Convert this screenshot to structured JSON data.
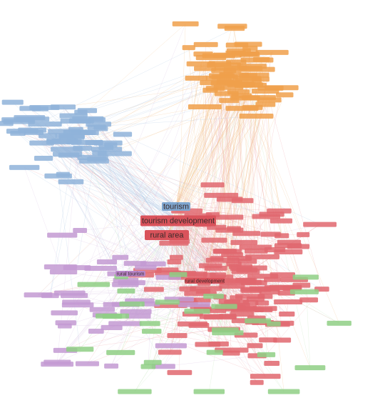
{
  "nodes": [
    {
      "label": "tourism",
      "color": "#7fa6cf"
    },
    {
      "label": "tourism development",
      "color": "#d9535b"
    },
    {
      "label": "rural area",
      "color": "#d9535b"
    },
    {
      "label": "rural development",
      "color": "#d9535b"
    },
    {
      "label": "rural tourism",
      "color": "#b886c9"
    }
  ]
}
